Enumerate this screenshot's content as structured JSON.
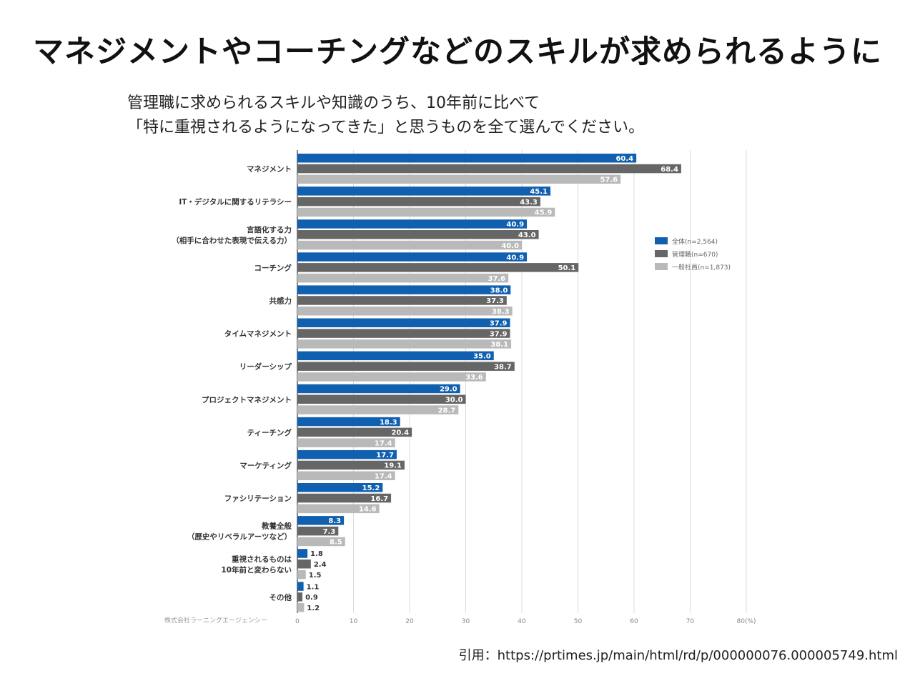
{
  "page": {
    "headline": "マネジメントやコーチングなどのスキルが求められるように",
    "question_line1": "管理職に求められるスキルや知識のうち、10年前に比べて",
    "question_line2": "「特に重視されるようになってきた」と思うものを全て選んでください。",
    "citation": "引用：https://prtimes.jp/main/html/rd/p/000000076.000005749.html"
  },
  "colors": {
    "all": "#1160b0",
    "manager": "#666666",
    "employee": "#b9b9b9",
    "grid": "#dddddd",
    "axis": "#333333"
  },
  "chart_data": {
    "type": "bar",
    "orientation": "horizontal",
    "categories": [
      [
        "マネジメント"
      ],
      [
        "IT・デジタルに関するリテラシー"
      ],
      [
        "言語化する力",
        "（相手に合わせた表現で伝える力）"
      ],
      [
        "コーチング"
      ],
      [
        "共感力"
      ],
      [
        "タイムマネジメント"
      ],
      [
        "リーダーシップ"
      ],
      [
        "プロジェクトマネジメント"
      ],
      [
        "ティーチング"
      ],
      [
        "マーケティング"
      ],
      [
        "ファシリテーション"
      ],
      [
        "教養全般",
        "（歴史やリベラルアーツなど）"
      ],
      [
        "重視されるものは",
        "10年前と変わらない"
      ],
      [
        "その他"
      ]
    ],
    "series": [
      {
        "name": "全体(n=2,564)",
        "color_key": "all",
        "values": [
          60.4,
          45.1,
          40.9,
          40.9,
          38.0,
          37.9,
          35.0,
          29.0,
          18.3,
          17.7,
          15.2,
          8.3,
          1.8,
          1.1
        ],
        "labels": [
          "60.4",
          "45.1",
          "40.9",
          "40.9",
          "38.0",
          "37.9",
          "35.0",
          "29.0",
          "18.3",
          "17.7",
          "15.2",
          "8.3",
          "1.8",
          "1.1"
        ]
      },
      {
        "name": "管理職(n=670)",
        "color_key": "manager",
        "values": [
          68.4,
          43.3,
          43.0,
          50.1,
          37.3,
          37.9,
          38.7,
          30.0,
          20.4,
          19.1,
          16.7,
          7.3,
          2.4,
          0.9
        ],
        "labels": [
          "68.4",
          "43.3",
          "43.0",
          "50.1",
          "37.3",
          "37.9",
          "38.7",
          "30.0",
          "20.4",
          "19.1",
          "16.7",
          "7.3",
          "2.4",
          "0.9"
        ]
      },
      {
        "name": "一般社員(n=1,873)",
        "color_key": "employee",
        "values": [
          57.6,
          45.9,
          40.0,
          37.6,
          38.3,
          38.1,
          33.6,
          28.7,
          17.4,
          17.4,
          14.6,
          8.5,
          1.5,
          1.2
        ],
        "labels": [
          "57.6",
          "45.9",
          "40.0",
          "37.6",
          "38.3",
          "38.1",
          "33.6",
          "28.7",
          "17.4",
          "17.4",
          "14.6",
          "8.5",
          "1.5",
          "1.2"
        ]
      }
    ],
    "x_ticks": [
      "0",
      "10",
      "20",
      "30",
      "40",
      "50",
      "60",
      "70",
      "80(%)"
    ],
    "xlim": [
      0,
      80
    ],
    "source": "株式会社ラーニングエージェンシー",
    "legend_position": "right",
    "grid": true
  }
}
